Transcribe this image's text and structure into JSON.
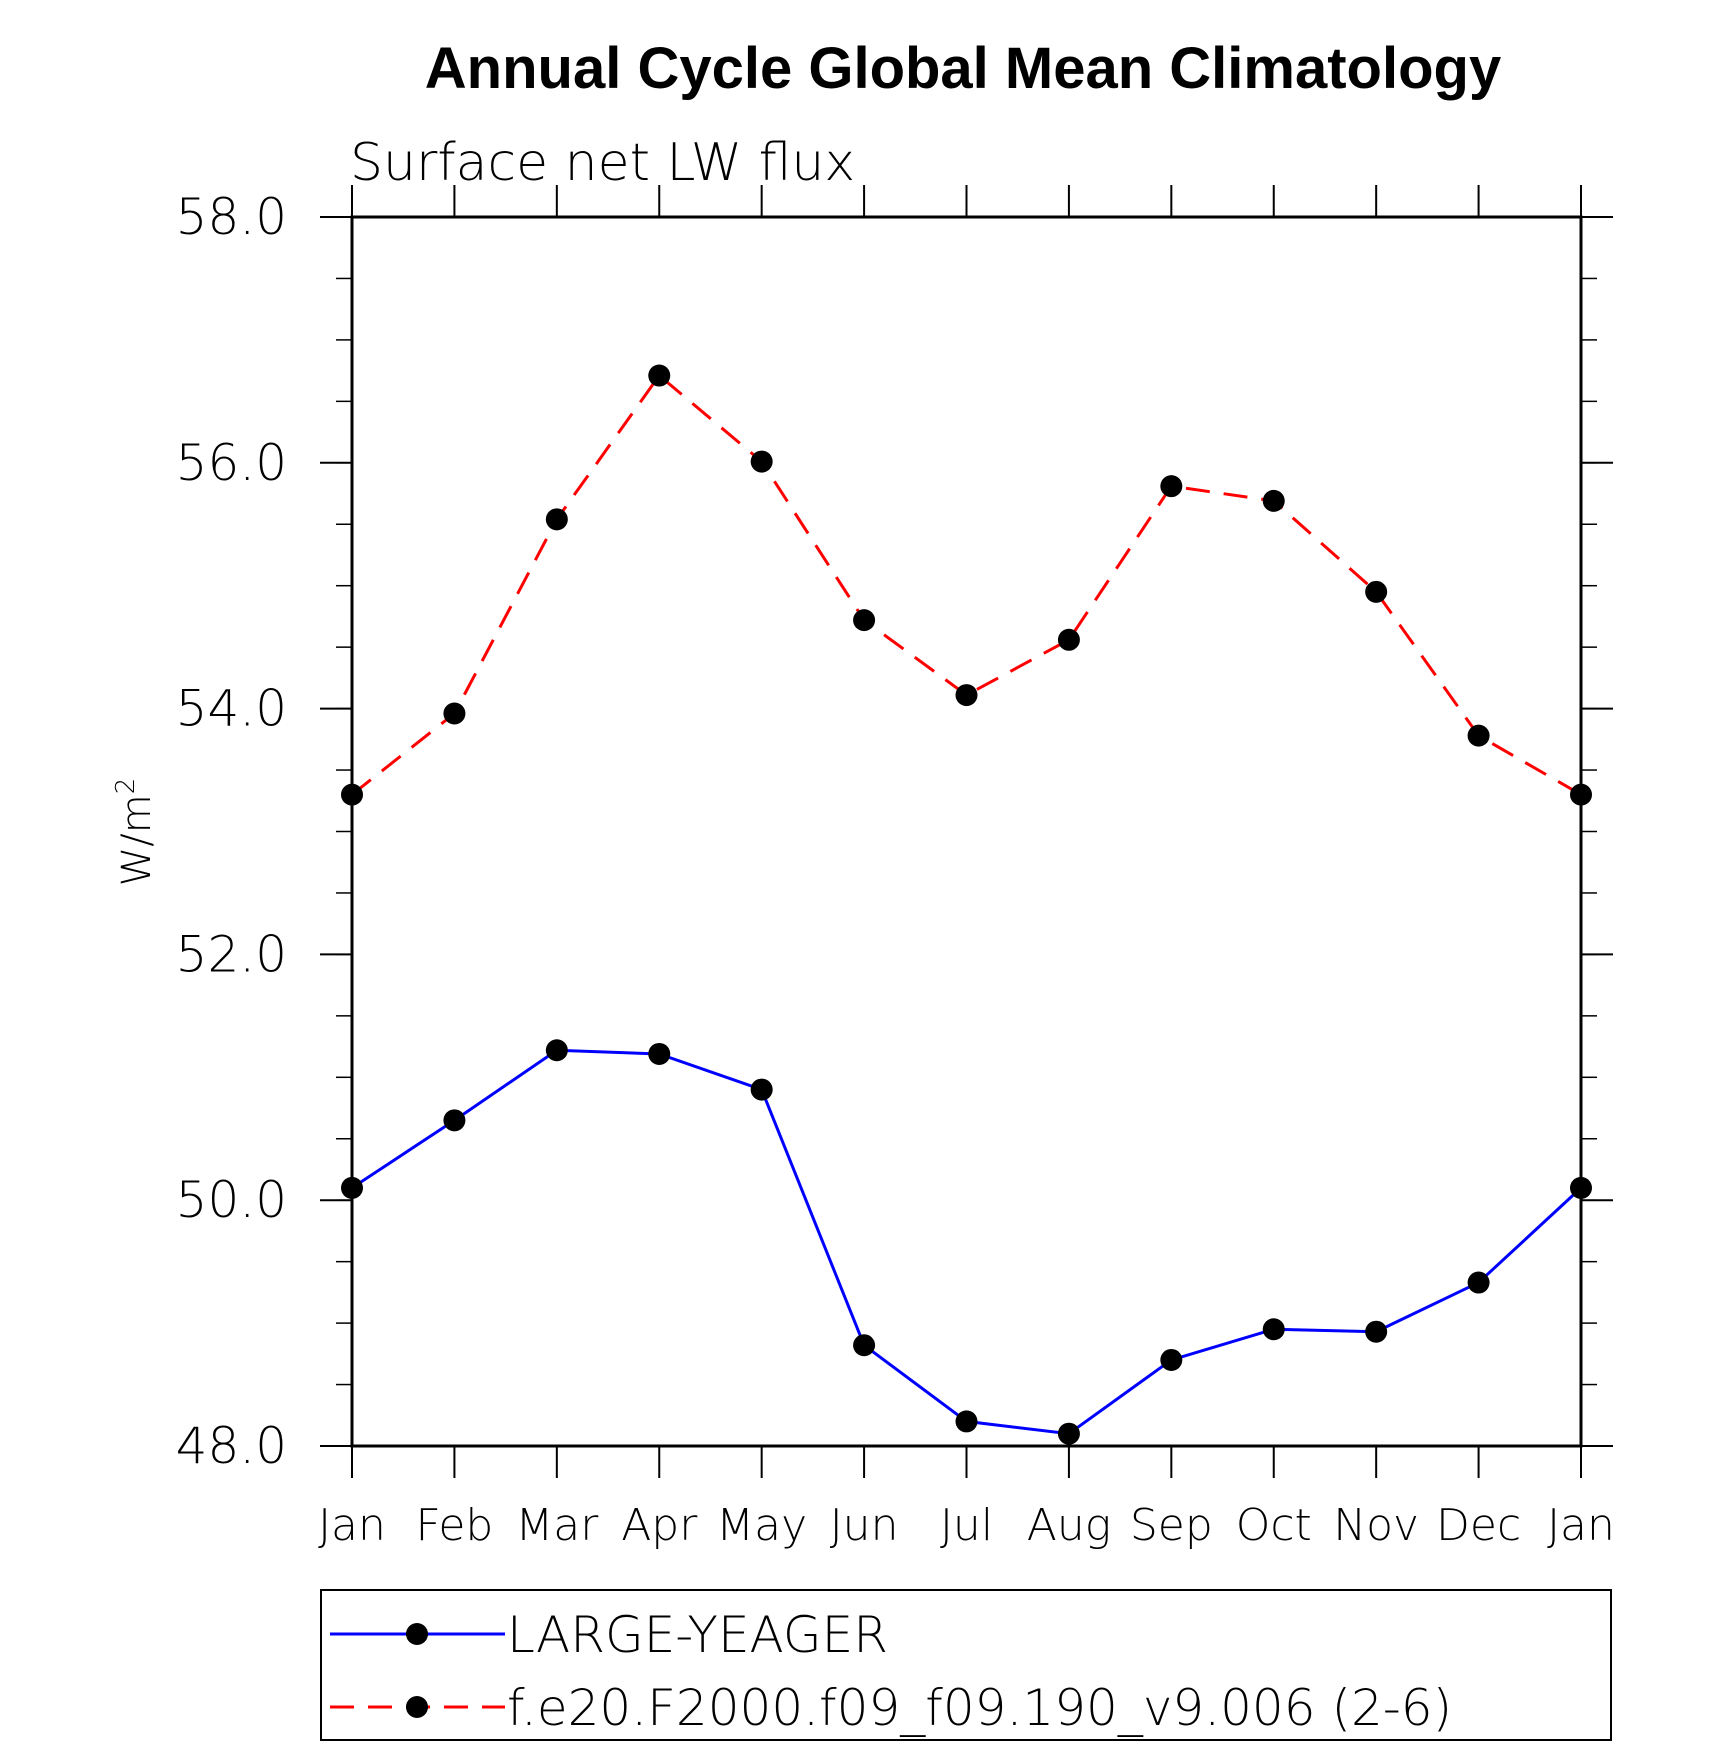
{
  "chart_data": {
    "type": "line",
    "title": "Annual Cycle Global Mean Climatology",
    "subtitle": "Surface net LW flux",
    "ylabel": "W/m",
    "ylabel_superscript": "2",
    "xlabel": "",
    "categories": [
      "Jan",
      "Feb",
      "Mar",
      "Apr",
      "May",
      "Jun",
      "Jul",
      "Aug",
      "Sep",
      "Oct",
      "Nov",
      "Dec",
      "Jan"
    ],
    "ylim": [
      48.0,
      58.0
    ],
    "yticks": [
      "48.0",
      "50.0",
      "52.0",
      "54.0",
      "56.0",
      "58.0"
    ],
    "grid": false,
    "legend_position": "bottom",
    "series": [
      {
        "name": "LARGE-YEAGER",
        "color": "#0000ff",
        "line_style": "solid",
        "marker": "filled-circle",
        "values": [
          50.1,
          50.65,
          51.22,
          51.19,
          50.9,
          48.82,
          48.2,
          48.1,
          48.7,
          48.95,
          48.93,
          49.33,
          50.1
        ]
      },
      {
        "name": "f.e20.F2000.f09_f09.190_v9.006 (2-6)",
        "color": "#ff0000",
        "line_style": "dashed",
        "marker": "filled-circle",
        "values": [
          53.3,
          53.96,
          55.54,
          56.71,
          56.01,
          54.72,
          54.11,
          54.56,
          55.81,
          55.69,
          54.95,
          53.78,
          53.3
        ]
      }
    ]
  }
}
